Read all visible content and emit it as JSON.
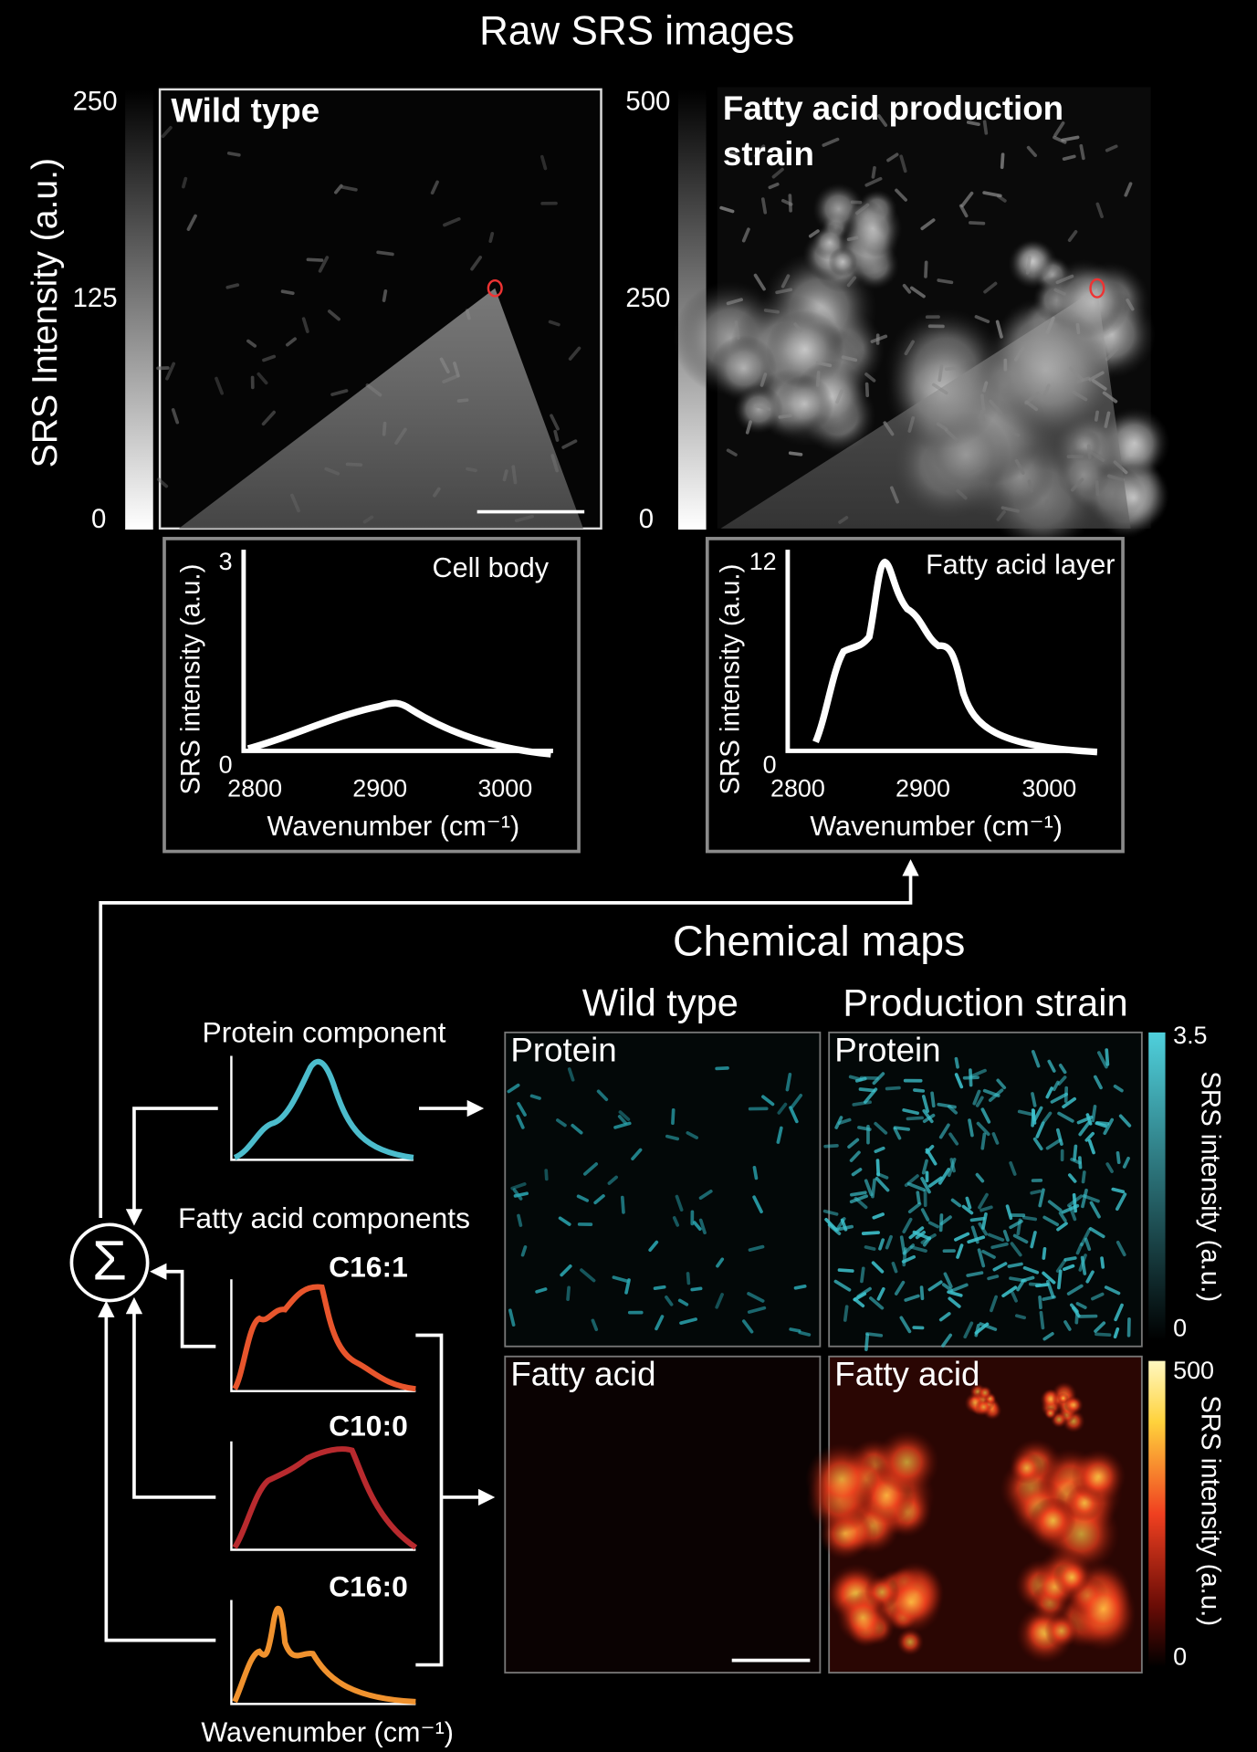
{
  "title": "Raw SRS images",
  "raw": {
    "y_label": "SRS Intensity (a.u.)",
    "panels": [
      {
        "label": "Wild type",
        "colorbar_ticks": [
          250,
          125,
          0
        ]
      },
      {
        "label_lines": [
          "Fatty acid production",
          "strain"
        ],
        "colorbar_ticks": [
          500,
          250,
          0
        ]
      }
    ]
  },
  "spectra": [
    {
      "label": "Cell body",
      "y_label": "SRS intensity (a.u.)",
      "yticks": [
        3,
        0
      ],
      "xticks": [
        2800,
        2900,
        3000
      ],
      "x_label": "Wavenumber (cm⁻¹)"
    },
    {
      "label": "Fatty acid layer",
      "y_label": "SRS intensity (a.u.)",
      "yticks": [
        12,
        0
      ],
      "xticks": [
        2800,
        2900,
        3000
      ],
      "x_label": "Wavenumber (cm⁻¹)"
    }
  ],
  "chemical_maps": {
    "title": "Chemical maps",
    "columns": [
      "Wild type",
      "Production strain"
    ],
    "rows": [
      {
        "labels": [
          "Protein",
          "Protein"
        ],
        "colorbar_ticks": [
          3.5,
          0
        ],
        "colorbar_label": "SRS intensity (a.u.)"
      },
      {
        "labels": [
          "Fatty acid",
          "Fatty acid"
        ],
        "colorbar_ticks": [
          500,
          0
        ],
        "colorbar_label": "SRS intensity (a.u.)"
      }
    ]
  },
  "components": {
    "sum_symbol": "Σ",
    "protein_label": "Protein component",
    "fatty_label": "Fatty acid components",
    "fatty": [
      "C16:1",
      "C10:0",
      "C16:0"
    ],
    "x_label": "Wavenumber (cm⁻¹)"
  }
}
